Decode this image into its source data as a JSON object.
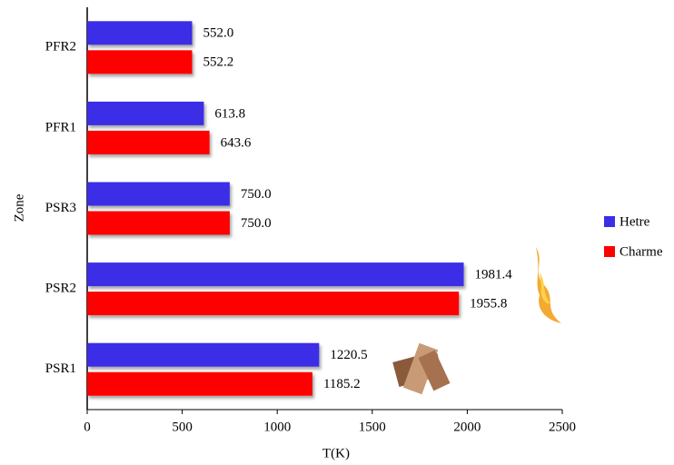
{
  "chart_data": {
    "type": "bar",
    "orientation": "horizontal",
    "categories": [
      "PFR2",
      "PFR1",
      "PSR3",
      "PSR2",
      "PSR1"
    ],
    "series": [
      {
        "name": "Hetre",
        "color": "#3b2ee6",
        "values": [
          552,
          613.8,
          750,
          1981.4,
          1220.5
        ],
        "value_labels": [
          "552.0",
          "613.8",
          "750.0",
          "1981.4",
          "1220.5"
        ]
      },
      {
        "name": "Charme",
        "color": "#ff0000",
        "values": [
          552.2,
          643.6,
          750,
          1955.8,
          1185.2
        ],
        "value_labels": [
          "552.2",
          "643.6",
          "750.0",
          "1955.8",
          "1185.2"
        ]
      }
    ],
    "xlabel": "T(K)",
    "ylabel": "Zone",
    "xlim": [
      0,
      2500
    ],
    "xticks": [
      0,
      500,
      1000,
      1500,
      2000,
      2500
    ],
    "legend": "right"
  }
}
